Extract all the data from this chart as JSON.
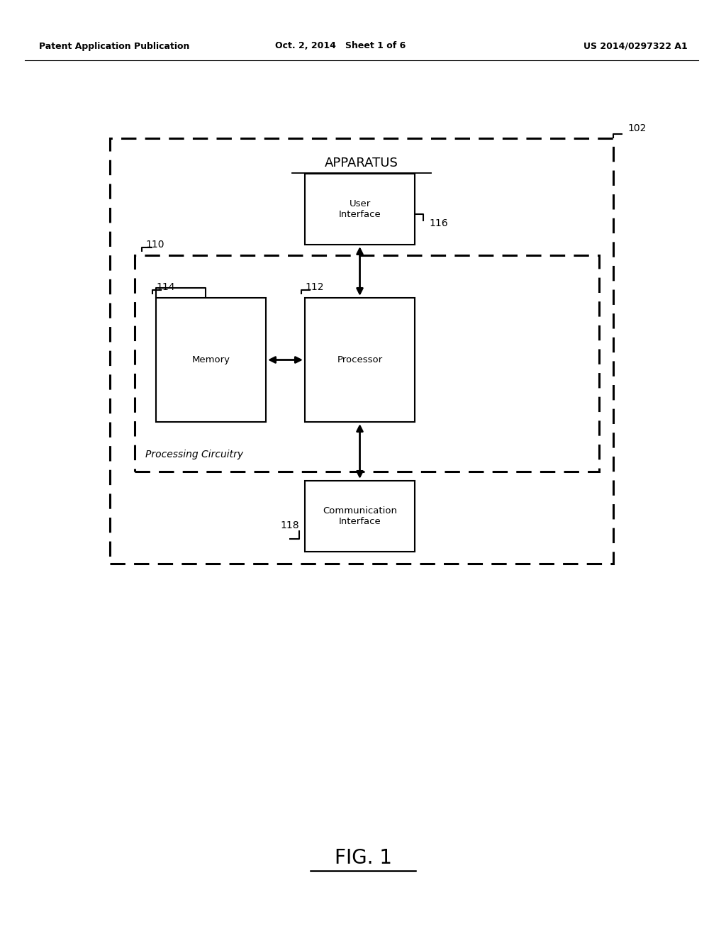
{
  "bg_color": "#ffffff",
  "header_left": "Patent Application Publication",
  "header_mid": "Oct. 2, 2014   Sheet 1 of 6",
  "header_right": "US 2014/0297322 A1",
  "footer_label": "FIG. 1",
  "apparatus_label": "APPARATUS",
  "outer_box_label": "102",
  "inner_box_label": "110",
  "processing_circuitry_label": "Processing Circuitry",
  "user_interface_label": "User\nInterface",
  "user_interface_ref": "116",
  "processor_label": "Processor",
  "processor_ref": "112",
  "memory_label": "Memory",
  "memory_ref": "114",
  "comm_interface_label": "Communication\nInterface",
  "comm_interface_ref": "118"
}
